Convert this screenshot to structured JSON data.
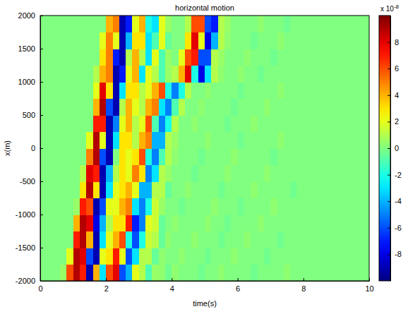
{
  "chart_data": {
    "type": "heatmap",
    "title": "horizontal motion",
    "x_label": "time(s)",
    "y_label": "x(m)",
    "xlim": [
      0,
      10
    ],
    "xticks": [
      0,
      2,
      4,
      6,
      8,
      10
    ],
    "ylim": [
      -2000,
      2000
    ],
    "yticks": [
      -2000,
      -1500,
      -1000,
      -500,
      0,
      500,
      1000,
      1500,
      2000
    ],
    "x": [
      0.1,
      0.3,
      0.5,
      0.7,
      0.9,
      1.1,
      1.3,
      1.5,
      1.7,
      1.9,
      2.1,
      2.3,
      2.5,
      2.7,
      2.9,
      3.1,
      3.3,
      3.5,
      3.7,
      3.9,
      4.1,
      4.3,
      4.5,
      4.7,
      4.9,
      5.1,
      5.3,
      5.5,
      5.7,
      5.9,
      6.1,
      6.3,
      6.5,
      6.7,
      6.9,
      7.1,
      7.3,
      7.5,
      7.7,
      7.9,
      8.1,
      8.3,
      8.5,
      8.7,
      8.9,
      9.1,
      9.3,
      9.5,
      9.7,
      9.9
    ],
    "y": [
      -1875,
      -1625,
      -1375,
      -1125,
      -875,
      -625,
      -375,
      -125,
      125,
      375,
      625,
      875,
      1125,
      1375,
      1625,
      1875
    ],
    "z": [
      [
        0,
        0,
        0,
        0.5,
        6,
        9,
        7,
        -9,
        4,
        -3,
        6,
        8,
        -6,
        -4,
        2,
        1,
        -1,
        0.5,
        0.3,
        -0.3,
        0.3,
        0,
        0,
        0,
        -0.3,
        0,
        0,
        0.3,
        0,
        0,
        0,
        0,
        -0.3,
        0,
        0,
        0,
        0,
        0.3,
        0,
        0,
        0,
        0,
        0,
        0,
        0,
        0,
        0,
        0,
        0,
        0
      ],
      [
        0,
        0,
        0,
        0,
        2,
        9,
        8,
        -6,
        -9,
        2,
        3,
        7,
        2,
        -6,
        -3,
        1,
        1,
        -0.5,
        0.3,
        0,
        0,
        0.3,
        0,
        0,
        0,
        -0.3,
        0,
        0,
        0,
        0.3,
        0,
        0,
        0,
        0,
        -0.3,
        0,
        0,
        0,
        0,
        0,
        0,
        0,
        0,
        0,
        0,
        0,
        0,
        0,
        0,
        0
      ],
      [
        0,
        0,
        0,
        0,
        0,
        7,
        9,
        4,
        -9,
        -3,
        2,
        4,
        6,
        -2,
        -6,
        -2,
        1.5,
        1,
        -0.5,
        0.3,
        0,
        0,
        0,
        0.3,
        0,
        0,
        0,
        -0.3,
        0,
        0,
        0,
        0.3,
        0,
        0,
        0,
        0,
        -0.3,
        0,
        0,
        0,
        0,
        0,
        0,
        0,
        0,
        0,
        0,
        0,
        0,
        0
      ],
      [
        0,
        0,
        0,
        0,
        0,
        4,
        9,
        8,
        -8,
        -4,
        1,
        3,
        3,
        7,
        -7,
        -5,
        2,
        1.5,
        -0.5,
        0,
        0.3,
        0,
        0,
        0,
        0,
        0.3,
        0,
        0,
        -0.3,
        0,
        0,
        0,
        0,
        0.3,
        0,
        0,
        0,
        0,
        0,
        0,
        0,
        0,
        0,
        0,
        0,
        0,
        0,
        0,
        0,
        0
      ],
      [
        0,
        0,
        0,
        0,
        0,
        0.5,
        7,
        6,
        -9,
        -6,
        2,
        2,
        4,
        5,
        -3,
        -5,
        -2,
        1.5,
        0.5,
        0,
        0,
        -0.3,
        0,
        0,
        0,
        0,
        0.3,
        0,
        0,
        0,
        -0.3,
        0,
        0,
        0,
        0,
        0.3,
        0,
        0,
        0,
        0,
        0,
        0,
        0,
        0,
        0,
        0,
        0,
        0,
        0,
        0
      ],
      [
        0,
        0,
        0,
        0,
        0,
        0,
        3,
        9,
        3,
        -9,
        -3,
        2,
        3,
        4,
        2,
        -4,
        -4,
        1,
        1,
        -0.5,
        0,
        0,
        0.3,
        0,
        0,
        0,
        0,
        -0.3,
        0,
        0,
        0,
        0,
        0.3,
        0,
        0,
        0,
        0,
        0,
        -0.3,
        0,
        0,
        0,
        0,
        0,
        0,
        0,
        0,
        0,
        0,
        0
      ],
      [
        0,
        0,
        0,
        0,
        0,
        0,
        1,
        8,
        7,
        -9,
        -4,
        1,
        3,
        2,
        5,
        3,
        -5,
        -3,
        1,
        0.5,
        0,
        0,
        0,
        -0.3,
        0,
        0,
        0,
        0,
        0.3,
        0,
        0,
        0,
        0,
        0,
        0.3,
        0,
        0,
        0,
        0,
        0,
        0,
        0,
        0,
        0,
        0,
        0,
        0,
        0,
        0,
        0
      ],
      [
        0,
        0,
        0,
        0,
        0,
        0,
        0,
        5,
        9,
        -6,
        -9,
        0,
        3,
        2,
        3,
        6,
        -2,
        -5,
        -1,
        1,
        0.3,
        0,
        0,
        0,
        -0.3,
        0,
        0,
        0,
        0,
        0.3,
        0,
        0,
        0,
        0,
        0,
        -0.3,
        0,
        0,
        0,
        0,
        0,
        0,
        0,
        0,
        0,
        0,
        0,
        0,
        0,
        0
      ],
      [
        0,
        0,
        0,
        0,
        0,
        0,
        0,
        2,
        9,
        2,
        -9,
        -3,
        3,
        3,
        1,
        4,
        5,
        -4,
        -4,
        1,
        0.5,
        0,
        0,
        0,
        0,
        0.3,
        0,
        0,
        0,
        0,
        -0.3,
        0,
        0,
        0,
        0,
        0,
        0.3,
        0,
        0,
        0,
        0,
        0,
        0,
        0,
        0,
        0,
        0,
        0,
        0,
        0
      ],
      [
        0,
        0,
        0,
        0,
        0,
        0,
        0,
        0,
        7,
        7,
        -9,
        -5,
        2,
        4,
        1,
        2,
        6,
        -1,
        -5,
        -2,
        1,
        0,
        0,
        0.3,
        0,
        0,
        0,
        0,
        -0.3,
        0,
        0,
        0,
        0.3,
        0,
        0,
        0,
        0,
        0,
        0,
        0,
        0,
        0,
        0,
        0,
        0,
        0,
        0,
        0,
        0,
        0
      ],
      [
        0,
        0,
        0,
        0,
        0,
        0,
        0,
        0,
        4,
        9,
        -6,
        -9,
        1,
        4,
        2,
        1,
        4,
        5,
        -3,
        -5,
        -1,
        1,
        0,
        0,
        0.3,
        0,
        0,
        0,
        0,
        -0.3,
        0,
        0,
        0,
        0,
        0.3,
        0,
        0,
        0,
        0,
        0,
        0,
        0,
        0,
        0,
        0,
        0,
        0,
        0,
        0,
        0
      ],
      [
        0,
        0,
        0,
        0,
        0,
        0,
        0,
        0,
        2,
        8,
        3,
        -9,
        -3,
        3,
        3,
        1,
        2,
        4,
        6,
        -2,
        -5,
        -2,
        1,
        0,
        0,
        0.3,
        0,
        0,
        0,
        0,
        -0.3,
        0,
        0,
        0,
        0,
        0,
        0.3,
        0,
        0,
        0,
        0,
        0,
        0,
        0,
        0,
        0,
        0,
        0,
        0,
        0
      ],
      [
        0,
        0,
        0,
        0,
        0,
        0,
        0,
        0,
        1,
        4,
        5,
        -9,
        -7,
        2,
        4,
        -3,
        2,
        1,
        -1,
        0.5,
        1,
        4,
        8,
        -2,
        -8,
        -3,
        1,
        0.3,
        0,
        0,
        0.3,
        0,
        0,
        -0.3,
        0,
        0,
        0,
        0,
        0,
        0,
        0,
        0,
        0,
        0,
        0,
        0,
        0,
        0,
        0,
        0
      ],
      [
        0,
        0,
        0,
        0,
        0,
        0,
        0,
        0,
        0,
        3,
        5,
        -7,
        -9,
        1,
        4,
        1,
        -3,
        2,
        -1,
        0.5,
        0,
        2,
        6,
        7,
        -6,
        -6,
        1,
        0.5,
        0,
        0,
        0,
        0.3,
        0,
        0,
        0,
        -0.3,
        0,
        0,
        0,
        0,
        0,
        0,
        0,
        0,
        0,
        0,
        0,
        0,
        0,
        0
      ],
      [
        0,
        0,
        0,
        0,
        0,
        0,
        0,
        0,
        0,
        2,
        5,
        2,
        -9,
        -4,
        3,
        3,
        -3,
        -1,
        2,
        -0.5,
        0,
        0,
        3,
        8,
        2,
        -8,
        -4,
        1,
        0.3,
        0,
        0,
        0,
        -0.3,
        0,
        0,
        0,
        0.3,
        0,
        0,
        0,
        0,
        0,
        0,
        0,
        0,
        0,
        0,
        0,
        0,
        0
      ],
      [
        0,
        0,
        0,
        0,
        0,
        0,
        0,
        0,
        0,
        0,
        4,
        5,
        -9,
        -7,
        2,
        4,
        -2,
        -3,
        2,
        0.5,
        0,
        0,
        1,
        6,
        6,
        -6,
        -7,
        1,
        0.5,
        0,
        0,
        0,
        0,
        0.3,
        0,
        0,
        0,
        -0.3,
        0,
        0,
        0,
        0,
        0,
        0,
        0,
        0,
        0,
        0,
        0,
        0
      ]
    ],
    "colorbar": {
      "range": [
        -10,
        10
      ],
      "ticks": [
        -8,
        -6,
        -4,
        -2,
        0,
        2,
        4,
        6,
        8
      ],
      "label": "x 10",
      "label_exponent": "-8"
    }
  }
}
